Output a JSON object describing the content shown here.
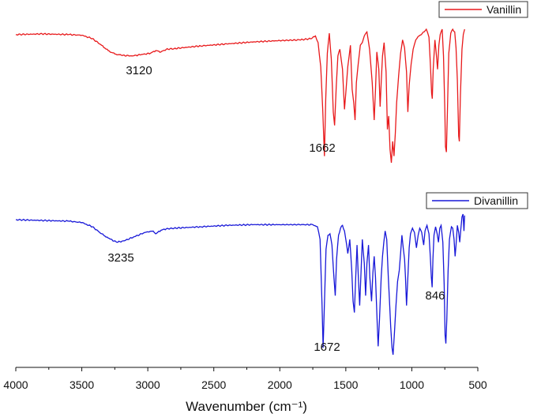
{
  "chart_data": {
    "type": "line",
    "xlabel": "Wavenumber (cm⁻¹)",
    "ylabel": "",
    "xlim": [
      4000,
      500
    ],
    "x_reversed": true,
    "xticks": [
      4000,
      3500,
      3000,
      2500,
      2000,
      1500,
      1000,
      500
    ],
    "y_axis_shown": false,
    "grid": false,
    "legend_placement": "top-right of each series",
    "series": [
      {
        "name": "Vanillin",
        "color": "#e8191b",
        "annotations": [
          {
            "text": "3120",
            "x": 3120
          },
          {
            "text": "1662",
            "x": 1662
          }
        ],
        "points": [
          [
            4000,
            96
          ],
          [
            3800,
            96.5
          ],
          [
            3600,
            96
          ],
          [
            3500,
            95.5
          ],
          [
            3420,
            93
          ],
          [
            3350,
            88
          ],
          [
            3300,
            84
          ],
          [
            3250,
            81.5
          ],
          [
            3200,
            80.5
          ],
          [
            3120,
            80
          ],
          [
            3050,
            81
          ],
          [
            2980,
            82
          ],
          [
            2940,
            84
          ],
          [
            2900,
            83
          ],
          [
            2860,
            85
          ],
          [
            2800,
            85.5
          ],
          [
            2600,
            87.5
          ],
          [
            2400,
            89
          ],
          [
            2200,
            90.5
          ],
          [
            2000,
            91.5
          ],
          [
            1850,
            92
          ],
          [
            1760,
            93
          ],
          [
            1730,
            95
          ],
          [
            1710,
            90
          ],
          [
            1690,
            72
          ],
          [
            1675,
            40
          ],
          [
            1662,
            5
          ],
          [
            1652,
            48
          ],
          [
            1640,
            82
          ],
          [
            1625,
            97
          ],
          [
            1610,
            78
          ],
          [
            1595,
            38
          ],
          [
            1585,
            28
          ],
          [
            1572,
            58
          ],
          [
            1560,
            80
          ],
          [
            1545,
            85
          ],
          [
            1525,
            70
          ],
          [
            1510,
            40
          ],
          [
            1498,
            55
          ],
          [
            1485,
            72
          ],
          [
            1465,
            88
          ],
          [
            1452,
            55
          ],
          [
            1440,
            45
          ],
          [
            1430,
            32
          ],
          [
            1420,
            60
          ],
          [
            1405,
            75
          ],
          [
            1390,
            88
          ],
          [
            1375,
            90
          ],
          [
            1360,
            95
          ],
          [
            1340,
            98
          ],
          [
            1320,
            85
          ],
          [
            1300,
            60
          ],
          [
            1285,
            32
          ],
          [
            1275,
            55
          ],
          [
            1265,
            83
          ],
          [
            1250,
            70
          ],
          [
            1240,
            42
          ],
          [
            1232,
            60
          ],
          [
            1222,
            80
          ],
          [
            1210,
            90
          ],
          [
            1195,
            68
          ],
          [
            1185,
            25
          ],
          [
            1175,
            35
          ],
          [
            1165,
            10
          ],
          [
            1155,
            0
          ],
          [
            1145,
            16
          ],
          [
            1135,
            5
          ],
          [
            1125,
            22
          ],
          [
            1115,
            45
          ],
          [
            1100,
            65
          ],
          [
            1085,
            82
          ],
          [
            1070,
            92
          ],
          [
            1055,
            86
          ],
          [
            1040,
            68
          ],
          [
            1030,
            38
          ],
          [
            1020,
            58
          ],
          [
            1005,
            74
          ],
          [
            990,
            85
          ],
          [
            970,
            92
          ],
          [
            945,
            95
          ],
          [
            920,
            97
          ],
          [
            890,
            100
          ],
          [
            870,
            94
          ],
          [
            860,
            75
          ],
          [
            850,
            52
          ],
          [
            845,
            48
          ],
          [
            838,
            70
          ],
          [
            825,
            92
          ],
          [
            815,
            82
          ],
          [
            805,
            70
          ],
          [
            795,
            88
          ],
          [
            785,
            96
          ],
          [
            770,
            100
          ],
          [
            760,
            80
          ],
          [
            750,
            40
          ],
          [
            745,
            12
          ],
          [
            738,
            8
          ],
          [
            730,
            40
          ],
          [
            720,
            82
          ],
          [
            705,
            97
          ],
          [
            690,
            100
          ],
          [
            675,
            98
          ],
          [
            665,
            86
          ],
          [
            655,
            62
          ],
          [
            645,
            20
          ],
          [
            640,
            16
          ],
          [
            632,
            50
          ],
          [
            620,
            85
          ],
          [
            610,
            96
          ],
          [
            600,
            100
          ]
        ]
      },
      {
        "name": "Divanillin",
        "color": "#1818d8",
        "annotations": [
          {
            "text": "3235",
            "x": 3235
          },
          {
            "text": "1672",
            "x": 1672
          },
          {
            "text": "846",
            "x": 846
          }
        ],
        "points": [
          [
            4000,
            96
          ],
          [
            3800,
            95.5
          ],
          [
            3600,
            95
          ],
          [
            3500,
            94
          ],
          [
            3420,
            91
          ],
          [
            3350,
            86
          ],
          [
            3300,
            83
          ],
          [
            3235,
            80
          ],
          [
            3180,
            81
          ],
          [
            3100,
            84
          ],
          [
            3020,
            87
          ],
          [
            2960,
            88
          ],
          [
            2940,
            86
          ],
          [
            2900,
            88.5
          ],
          [
            2860,
            89.5
          ],
          [
            2800,
            90
          ],
          [
            2600,
            91
          ],
          [
            2400,
            92
          ],
          [
            2200,
            92.5
          ],
          [
            2000,
            92.5
          ],
          [
            1850,
            92.5
          ],
          [
            1750,
            92.5
          ],
          [
            1715,
            91
          ],
          [
            1695,
            82
          ],
          [
            1680,
            35
          ],
          [
            1672,
            5
          ],
          [
            1664,
            30
          ],
          [
            1650,
            75
          ],
          [
            1635,
            85
          ],
          [
            1620,
            86
          ],
          [
            1605,
            78
          ],
          [
            1590,
            55
          ],
          [
            1580,
            42
          ],
          [
            1570,
            68
          ],
          [
            1555,
            85
          ],
          [
            1540,
            90
          ],
          [
            1525,
            92
          ],
          [
            1510,
            88
          ],
          [
            1500,
            82
          ],
          [
            1485,
            72
          ],
          [
            1470,
            82
          ],
          [
            1455,
            60
          ],
          [
            1445,
            38
          ],
          [
            1435,
            30
          ],
          [
            1425,
            55
          ],
          [
            1415,
            78
          ],
          [
            1405,
            55
          ],
          [
            1395,
            35
          ],
          [
            1385,
            58
          ],
          [
            1375,
            82
          ],
          [
            1360,
            65
          ],
          [
            1350,
            42
          ],
          [
            1340,
            65
          ],
          [
            1328,
            78
          ],
          [
            1318,
            55
          ],
          [
            1305,
            38
          ],
          [
            1295,
            58
          ],
          [
            1285,
            70
          ],
          [
            1275,
            55
          ],
          [
            1262,
            22
          ],
          [
            1255,
            6
          ],
          [
            1245,
            25
          ],
          [
            1232,
            55
          ],
          [
            1222,
            70
          ],
          [
            1212,
            80
          ],
          [
            1202,
            88
          ],
          [
            1190,
            82
          ],
          [
            1178,
            55
          ],
          [
            1170,
            40
          ],
          [
            1160,
            20
          ],
          [
            1150,
            5
          ],
          [
            1142,
            0
          ],
          [
            1132,
            15
          ],
          [
            1120,
            35
          ],
          [
            1108,
            52
          ],
          [
            1095,
            60
          ],
          [
            1085,
            72
          ],
          [
            1075,
            85
          ],
          [
            1065,
            76
          ],
          [
            1055,
            68
          ],
          [
            1048,
            55
          ],
          [
            1040,
            35
          ],
          [
            1030,
            55
          ],
          [
            1020,
            76
          ],
          [
            1010,
            86
          ],
          [
            995,
            90
          ],
          [
            980,
            87
          ],
          [
            965,
            76
          ],
          [
            952,
            85
          ],
          [
            940,
            90
          ],
          [
            925,
            87
          ],
          [
            910,
            78
          ],
          [
            900,
            88
          ],
          [
            885,
            92
          ],
          [
            870,
            86
          ],
          [
            860,
            70
          ],
          [
            852,
            55
          ],
          [
            846,
            48
          ],
          [
            840,
            68
          ],
          [
            832,
            85
          ],
          [
            820,
            91
          ],
          [
            808,
            86
          ],
          [
            798,
            80
          ],
          [
            788,
            90
          ],
          [
            778,
            92
          ],
          [
            765,
            80
          ],
          [
            755,
            50
          ],
          [
            748,
            14
          ],
          [
            742,
            8
          ],
          [
            735,
            25
          ],
          [
            725,
            60
          ],
          [
            715,
            82
          ],
          [
            700,
            91
          ],
          [
            690,
            90
          ],
          [
            680,
            82
          ],
          [
            672,
            70
          ],
          [
            665,
            78
          ],
          [
            655,
            92
          ],
          [
            645,
            87
          ],
          [
            637,
            80
          ],
          [
            628,
            90
          ],
          [
            620,
            98
          ],
          [
            612,
            100
          ],
          [
            605,
            88
          ],
          [
            600,
            99
          ]
        ]
      }
    ]
  }
}
